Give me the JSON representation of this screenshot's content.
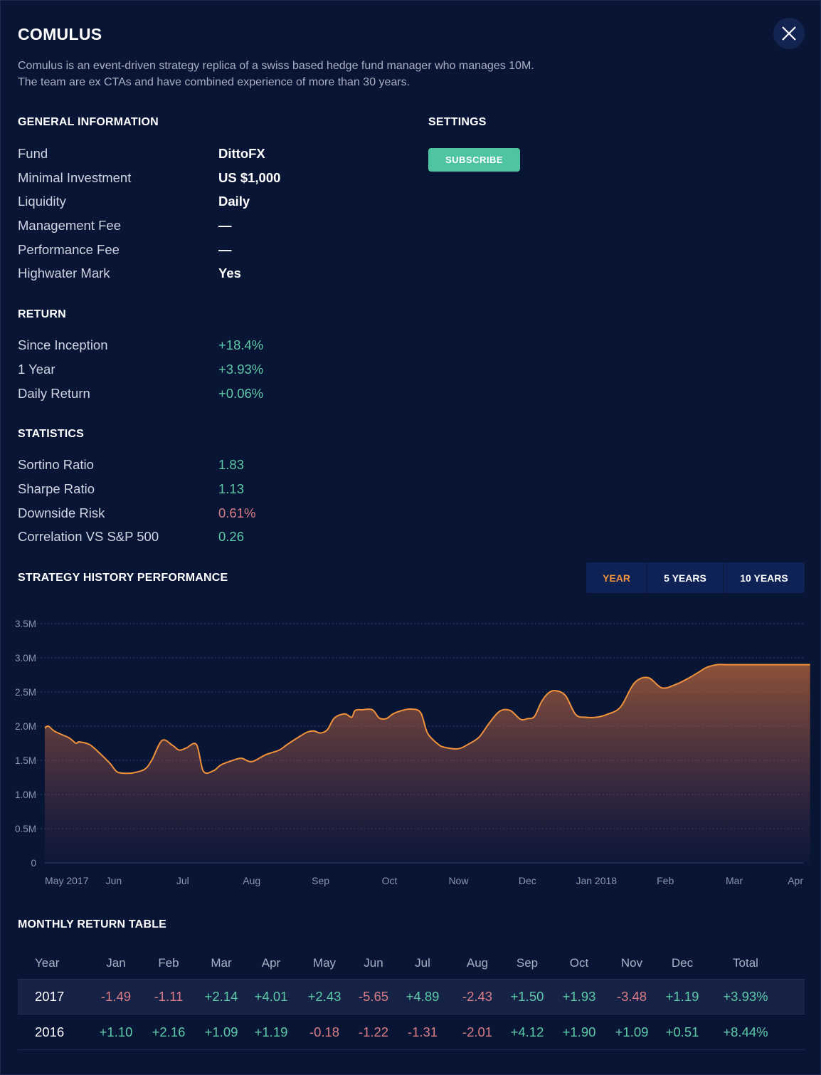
{
  "header": {
    "title": "COMULUS",
    "description_line1": "Comulus is an event-driven strategy replica of a swiss based hedge fund manager who manages 10M.",
    "description_line2": "The team are ex CTAs and have combined experience of more than 30 years."
  },
  "general": {
    "heading": "GENERAL INFORMATION",
    "rows": [
      {
        "label": "Fund",
        "value": "DittoFX"
      },
      {
        "label": "Minimal Investment",
        "value": "US $1,000"
      },
      {
        "label": "Liquidity",
        "value": "Daily"
      },
      {
        "label": "Management Fee",
        "value": "—"
      },
      {
        "label": "Performance Fee",
        "value": "—"
      },
      {
        "label": "Highwater Mark",
        "value": "Yes"
      }
    ]
  },
  "settings": {
    "heading": "SETTINGS",
    "subscribe_label": "SUBSCRIBE"
  },
  "returns": {
    "heading": "RETURN",
    "rows": [
      {
        "label": "Since Inception",
        "value": "+18.4%"
      },
      {
        "label": "1 Year",
        "value": "+3.93%"
      },
      {
        "label": "Daily Return",
        "value": "+0.06%"
      }
    ]
  },
  "statistics": {
    "heading": "STATISTICS",
    "rows": [
      {
        "label": "Sortino Ratio",
        "value": "1.83"
      },
      {
        "label": "Sharpe Ratio",
        "value": "1.13"
      },
      {
        "label": "Downside Risk",
        "value": "0.61%"
      },
      {
        "label": "Correlation VS S&P 500",
        "value": "0.26"
      }
    ]
  },
  "history": {
    "heading": "STRATEGY HISTORY PERFORMANCE",
    "tabs": [
      {
        "label": "YEAR",
        "active": true
      },
      {
        "label": "5 YEARS",
        "active": false
      },
      {
        "label": "10 YEARS",
        "active": false
      }
    ]
  },
  "chart_data": {
    "type": "area",
    "title": "",
    "xlabel": "",
    "ylabel": "",
    "y_ticks": [
      "0",
      "0.5M",
      "1.0M",
      "1.5M",
      "2.0M",
      "2.5M",
      "3.0M",
      "3.5M"
    ],
    "ylim": [
      0,
      3.5
    ],
    "x_ticks": [
      "May 2017",
      "Jun",
      "Jul",
      "Aug",
      "Sep",
      "Oct",
      "Now",
      "Dec",
      "Jan 2018",
      "Feb",
      "Mar",
      "Apr"
    ],
    "grid": true,
    "line_color": "#f0923c",
    "series": [
      {
        "x": [
          0,
          0.05,
          0.15,
          0.35,
          0.45,
          0.5,
          0.65,
          0.8,
          0.95,
          1.05,
          1.2,
          1.3,
          1.45,
          1.55,
          1.7,
          1.85,
          1.95,
          2.05,
          2.2,
          2.3,
          2.45,
          2.55,
          2.7,
          2.85,
          3.0,
          3.2,
          3.4,
          3.5,
          3.65,
          3.8,
          3.9,
          4.0,
          4.1,
          4.2,
          4.35,
          4.45,
          4.5,
          4.6,
          4.75,
          4.85,
          4.95,
          5.05,
          5.15,
          5.3,
          5.45,
          5.55,
          5.7,
          5.8,
          6.0,
          6.15,
          6.3,
          6.45,
          6.6,
          6.75,
          6.9,
          7.0,
          7.1,
          7.2,
          7.3,
          7.4,
          7.55,
          7.7,
          7.85,
          8.0,
          8.15,
          8.35,
          8.55,
          8.75,
          8.95,
          9.15,
          9.35,
          9.5,
          9.6,
          9.75,
          9.9,
          10.1,
          10.35,
          10.6,
          10.85,
          11.1
        ],
        "values": [
          1.97,
          2.0,
          1.92,
          1.83,
          1.75,
          1.77,
          1.73,
          1.6,
          1.45,
          1.33,
          1.31,
          1.32,
          1.37,
          1.5,
          1.79,
          1.72,
          1.65,
          1.68,
          1.73,
          1.34,
          1.35,
          1.43,
          1.49,
          1.53,
          1.48,
          1.58,
          1.65,
          1.72,
          1.82,
          1.91,
          1.93,
          1.9,
          1.95,
          2.12,
          2.18,
          2.13,
          2.23,
          2.24,
          2.24,
          2.12,
          2.11,
          2.18,
          2.22,
          2.25,
          2.2,
          1.9,
          1.74,
          1.69,
          1.67,
          1.74,
          1.84,
          2.05,
          2.22,
          2.23,
          2.1,
          2.11,
          2.14,
          2.35,
          2.48,
          2.52,
          2.45,
          2.17,
          2.13,
          2.13,
          2.17,
          2.28,
          2.63,
          2.71,
          2.56,
          2.61,
          2.71,
          2.8,
          2.86,
          2.9,
          2.9,
          2.9,
          2.9,
          2.9,
          2.9,
          2.9
        ]
      }
    ]
  },
  "monthly": {
    "heading": "MONTHLY RETURN TABLE",
    "columns": [
      "Year",
      "Jan",
      "Feb",
      "Mar",
      "Apr",
      "May",
      "Jun",
      "Jul",
      "Aug",
      "Sep",
      "Oct",
      "Nov",
      "Dec",
      "Total"
    ],
    "rows": [
      {
        "year": "2017",
        "cells": [
          "-1.49",
          "-1.11",
          "+2.14",
          "+4.01",
          "+2.43",
          "-5.65",
          "+4.89",
          "-2.43",
          "+1.50",
          "+1.93",
          "-3.48",
          "+1.19",
          "+3.93%"
        ]
      },
      {
        "year": "2016",
        "cells": [
          "+1.10",
          "+2.16",
          "+1.09",
          "+1.19",
          "-0.18",
          "-1.22",
          "-1.31",
          "-2.01",
          "+4.12",
          "+1.90",
          "+1.09",
          "+0.51",
          "+8.44%"
        ]
      }
    ]
  }
}
